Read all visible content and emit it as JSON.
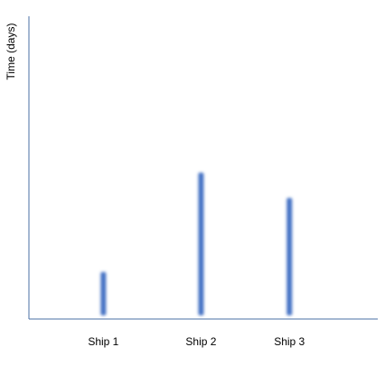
{
  "chart_data": {
    "type": "bar",
    "title": "",
    "xlabel": "",
    "ylabel": "Time (days)",
    "categories": [
      "Ship 1",
      "Ship 2",
      "Ship 3"
    ],
    "x_positions": [
      1,
      2.05,
      3
    ],
    "values": [
      52,
      162,
      134
    ],
    "ylim": [
      0,
      335
    ],
    "xlim": [
      0.2,
      3.95
    ],
    "grid": false,
    "legend": "none",
    "colors": {
      "bar": "#4472c4",
      "axis": "#4a6fa5"
    }
  }
}
